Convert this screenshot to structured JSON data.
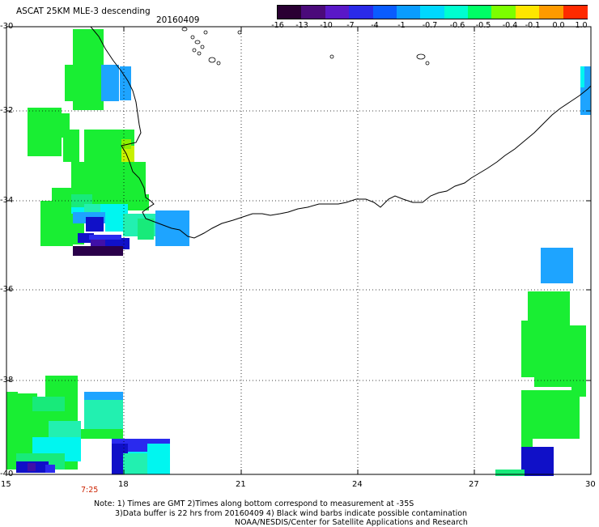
{
  "title": "ASCAT 25KM MLE-3 descending",
  "date": "20160409",
  "colorbar": {
    "ticks": [
      "-16",
      "-13",
      "-10",
      "-7",
      "-4",
      "-1",
      "-0.7",
      "-0.6",
      "-0.5",
      "-0.4",
      "-0.1",
      "0.0",
      "1.0"
    ],
    "colors": [
      "#2a0033",
      "#4b0a7a",
      "#5a18c8",
      "#2a2ae8",
      "#0a5cff",
      "#0a9cff",
      "#00d8ff",
      "#00ffd0",
      "#00ff66",
      "#7cff00",
      "#ffe600",
      "#ff9a00",
      "#ff2a00"
    ]
  },
  "axes": {
    "lat_labels": [
      "-30",
      "-32",
      "-34",
      "-36",
      "-38",
      "-40"
    ],
    "lon_labels": [
      "15",
      "18",
      "21",
      "24",
      "27",
      "30"
    ]
  },
  "time_label": "7:25",
  "notes": {
    "line1": "Note: 1) Times are GMT 2)Times along bottom correspond to measurement at -35S",
    "line2": "3)Data buffer is 22 hrs from 20160409 4) Black wind barbs indicate possible contamination",
    "line3": "NOAA/NESDIS/Center for Satellite Applications and Research"
  },
  "palette": {
    "green": "#19ee33",
    "green2": "#2af040",
    "teal": "#18ea7a",
    "mint": "#22f0b0",
    "cyan": "#00f6f0",
    "sky": "#1ea4ff",
    "blue": "#2a2aee",
    "navy": "#1010c8",
    "purple": "#4010a8",
    "deep": "#2a004a",
    "lime": "#8cf000",
    "yellowgreen": "#c8f000"
  }
}
